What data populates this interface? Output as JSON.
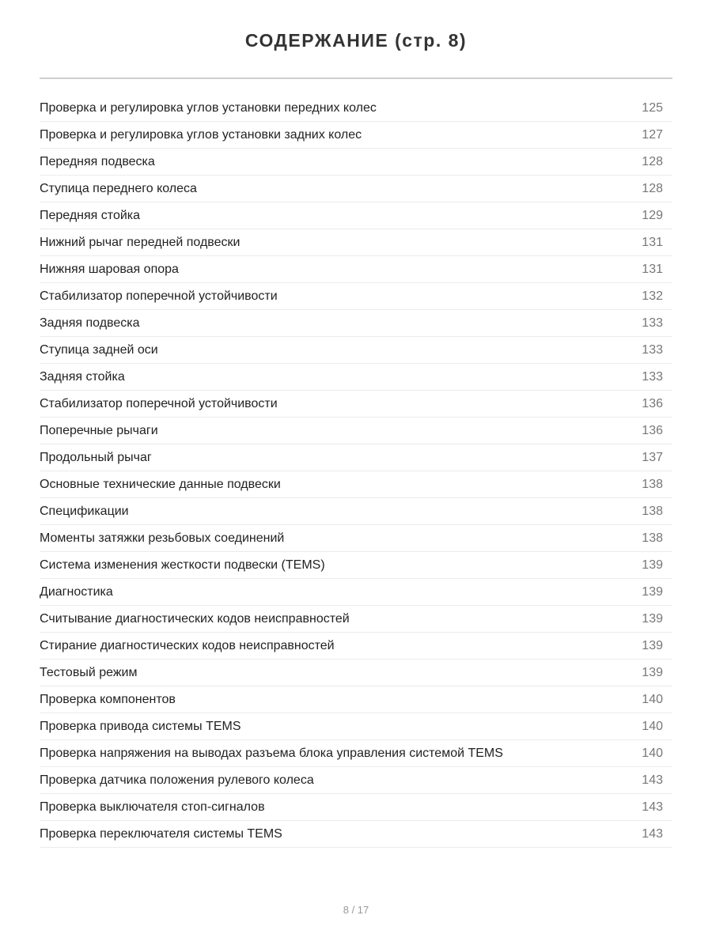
{
  "title": "СОДЕРЖАНИЕ (стр. 8)",
  "entries": [
    {
      "label": "Проверка и регулировка углов установки передних колес",
      "page": "125"
    },
    {
      "label": "Проверка и регулировка углов установки задних колес",
      "page": "127"
    },
    {
      "label": "Передняя подвеска",
      "page": "128"
    },
    {
      "label": "Ступица переднего колеса",
      "page": "128"
    },
    {
      "label": "Передняя стойка",
      "page": "129"
    },
    {
      "label": "Нижний рычаг передней подвески",
      "page": "131"
    },
    {
      "label": "Нижняя шаровая опора",
      "page": "131"
    },
    {
      "label": "Стабилизатор поперечной устойчивости",
      "page": "132"
    },
    {
      "label": "Задняя подвеска",
      "page": "133"
    },
    {
      "label": "Ступица задней оси",
      "page": "133"
    },
    {
      "label": "Задняя стойка",
      "page": "133"
    },
    {
      "label": "Стабилизатор поперечной устойчивости",
      "page": "136"
    },
    {
      "label": "Поперечные рычаги",
      "page": "136"
    },
    {
      "label": "Продольный рычаг",
      "page": "137"
    },
    {
      "label": "Основные технические данные подвески",
      "page": "138"
    },
    {
      "label": "Спецификации",
      "page": "138"
    },
    {
      "label": "Моменты затяжки резьбовых соединений",
      "page": "138"
    },
    {
      "label": "Система изменения жесткости подвески (TEMS)",
      "page": "139"
    },
    {
      "label": "Диагностика",
      "page": "139"
    },
    {
      "label": "Считывание диагностических кодов неисправностей",
      "page": "139"
    },
    {
      "label": "Стирание диагностических кодов неисправностей",
      "page": "139"
    },
    {
      "label": "Тестовый режим",
      "page": "139"
    },
    {
      "label": "Проверка компонентов",
      "page": "140"
    },
    {
      "label": "Проверка привода системы TEMS",
      "page": "140"
    },
    {
      "label": "Проверка напряжения на выводах разъема блока управления системой TEMS",
      "page": "140"
    },
    {
      "label": "Проверка датчика положения рулевого колеса",
      "page": "143"
    },
    {
      "label": "Проверка выключателя стоп-сигналов",
      "page": "143"
    },
    {
      "label": "Проверка переключателя системы TEMS",
      "page": "143"
    }
  ],
  "footer": {
    "pagination": "8 / 17"
  }
}
